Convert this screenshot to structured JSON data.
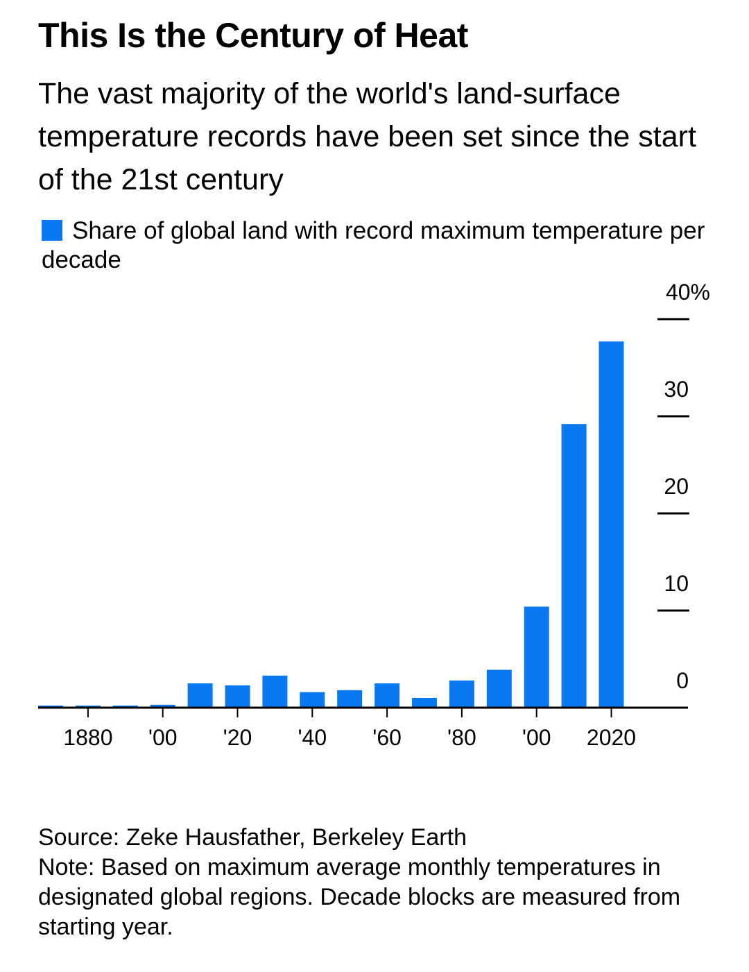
{
  "header": {
    "title": "This Is the Century of Heat",
    "subtitle": "The vast majority of the world's land-surface temperature records have been set since the start of the 21st century"
  },
  "legend": {
    "label": "Share of global land with record maximum temperature per decade",
    "color": "#0a78f0"
  },
  "chart_data": {
    "type": "bar",
    "categories": [
      "1870",
      "1880",
      "1890",
      "1900",
      "1910",
      "1920",
      "1930",
      "1940",
      "1950",
      "1960",
      "1970",
      "1980",
      "1990",
      "2000",
      "2010",
      "2020"
    ],
    "values": [
      0,
      0,
      0,
      0.3,
      2.5,
      2.3,
      3.3,
      1.6,
      1.8,
      2.5,
      1.0,
      2.8,
      3.9,
      10.4,
      29.2,
      37.7
    ],
    "ylim": [
      0,
      40
    ],
    "y_ticks": [
      {
        "value": 0,
        "label": "0"
      },
      {
        "value": 10,
        "label": "10"
      },
      {
        "value": 20,
        "label": "20"
      },
      {
        "value": 30,
        "label": "30"
      },
      {
        "value": 40,
        "label": "40%"
      }
    ],
    "x_ticks": [
      {
        "year": "1880",
        "label": "1880"
      },
      {
        "year": "1900",
        "label": "'00"
      },
      {
        "year": "1920",
        "label": "'20"
      },
      {
        "year": "1940",
        "label": "'40"
      },
      {
        "year": "1960",
        "label": "'60"
      },
      {
        "year": "1980",
        "label": "'80"
      },
      {
        "year": "2000",
        "label": "'00"
      },
      {
        "year": "2020",
        "label": "2020"
      }
    ],
    "y_axis_side": "right",
    "grid": false,
    "legend_position": "top-left",
    "bar_color": "#0a78f0"
  },
  "footer": {
    "source": "Source: Zeke Hausfather, Berkeley Earth",
    "note": "Note: Based on maximum average monthly temperatures in designated global regions. Decade blocks are measured from starting year."
  }
}
